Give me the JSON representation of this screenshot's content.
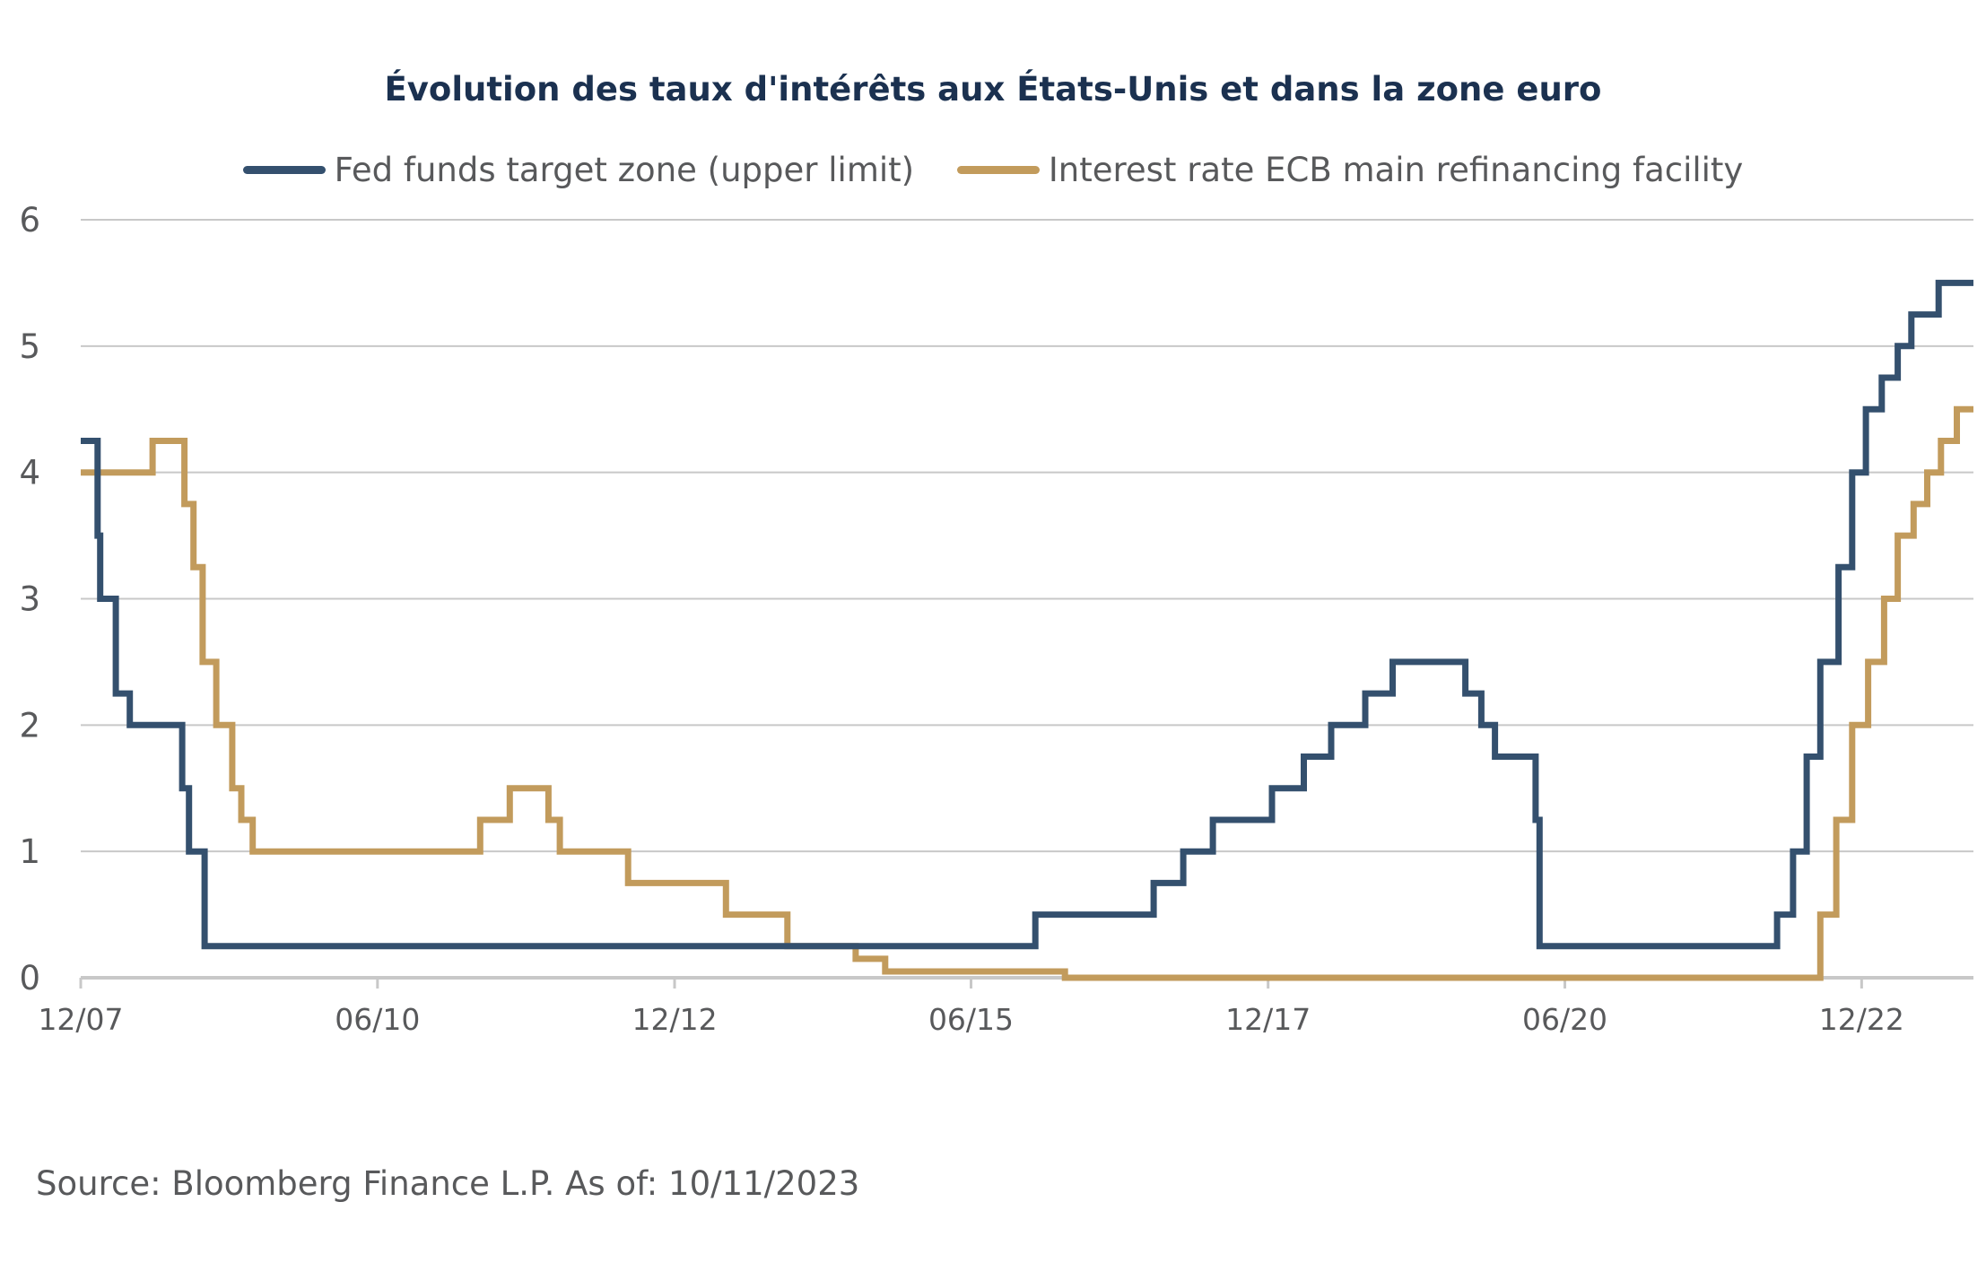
{
  "chart_data": {
    "type": "line",
    "title": "Évolution des taux d'intérêts aux États-Unis et dans la zone euro",
    "xlabel": "",
    "ylabel": "",
    "ylim": [
      0,
      6
    ],
    "yticks": [
      0,
      1,
      2,
      3,
      4,
      5,
      6
    ],
    "x_tick_labels": [
      "12/07",
      "06/10",
      "12/12",
      "06/15",
      "12/17",
      "06/20",
      "12/22"
    ],
    "x_tick_dates": [
      "2007-12",
      "2010-06",
      "2012-12",
      "2015-06",
      "2017-12",
      "2020-06",
      "2022-12"
    ],
    "x_range": [
      "2007-12-01",
      "2023-11-10"
    ],
    "grid": "horizontal",
    "legend_position": "top",
    "series": [
      {
        "name": "Fed funds target zone (upper limit)",
        "color": "#34506e",
        "step": true,
        "points": [
          [
            "2007-12-01",
            4.25
          ],
          [
            "2008-01-22",
            3.5
          ],
          [
            "2008-01-30",
            3.0
          ],
          [
            "2008-03-18",
            2.25
          ],
          [
            "2008-04-30",
            2.0
          ],
          [
            "2008-10-08",
            1.5
          ],
          [
            "2008-10-29",
            1.0
          ],
          [
            "2008-12-16",
            0.25
          ],
          [
            "2015-12-16",
            0.5
          ],
          [
            "2016-12-14",
            0.75
          ],
          [
            "2017-03-15",
            1.0
          ],
          [
            "2017-06-14",
            1.25
          ],
          [
            "2017-12-13",
            1.5
          ],
          [
            "2018-03-21",
            1.75
          ],
          [
            "2018-06-13",
            2.0
          ],
          [
            "2018-09-26",
            2.25
          ],
          [
            "2018-12-19",
            2.5
          ],
          [
            "2019-07-31",
            2.25
          ],
          [
            "2019-09-18",
            2.0
          ],
          [
            "2019-10-30",
            1.75
          ],
          [
            "2020-03-03",
            1.25
          ],
          [
            "2020-03-15",
            0.25
          ],
          [
            "2022-03-16",
            0.5
          ],
          [
            "2022-05-04",
            1.0
          ],
          [
            "2022-06-15",
            1.75
          ],
          [
            "2022-07-27",
            2.5
          ],
          [
            "2022-09-21",
            3.25
          ],
          [
            "2022-11-02",
            4.0
          ],
          [
            "2022-12-14",
            4.5
          ],
          [
            "2023-02-01",
            4.75
          ],
          [
            "2023-03-22",
            5.0
          ],
          [
            "2023-05-03",
            5.25
          ],
          [
            "2023-07-26",
            5.5
          ],
          [
            "2023-11-10",
            5.5
          ]
        ]
      },
      {
        "name": "Interest rate ECB main refinancing facility",
        "color": "#c29b5c",
        "step": true,
        "points": [
          [
            "2007-12-01",
            4.0
          ],
          [
            "2008-07-09",
            4.25
          ],
          [
            "2008-10-15",
            3.75
          ],
          [
            "2008-11-12",
            3.25
          ],
          [
            "2008-12-10",
            2.5
          ],
          [
            "2009-01-21",
            2.0
          ],
          [
            "2009-03-11",
            1.5
          ],
          [
            "2009-04-08",
            1.25
          ],
          [
            "2009-05-13",
            1.0
          ],
          [
            "2011-04-13",
            1.25
          ],
          [
            "2011-07-13",
            1.5
          ],
          [
            "2011-11-09",
            1.25
          ],
          [
            "2011-12-14",
            1.0
          ],
          [
            "2012-07-11",
            0.75
          ],
          [
            "2013-05-08",
            0.5
          ],
          [
            "2013-11-13",
            0.25
          ],
          [
            "2014-06-11",
            0.15
          ],
          [
            "2014-09-10",
            0.05
          ],
          [
            "2016-03-16",
            0.0
          ],
          [
            "2022-07-27",
            0.5
          ],
          [
            "2022-09-14",
            1.25
          ],
          [
            "2022-11-02",
            2.0
          ],
          [
            "2022-12-21",
            2.5
          ],
          [
            "2023-02-08",
            3.0
          ],
          [
            "2023-03-22",
            3.5
          ],
          [
            "2023-05-10",
            3.75
          ],
          [
            "2023-06-21",
            4.0
          ],
          [
            "2023-08-02",
            4.25
          ],
          [
            "2023-09-20",
            4.5
          ],
          [
            "2023-11-10",
            4.5
          ]
        ]
      }
    ]
  },
  "footer": {
    "source": "Source: Bloomberg Finance L.P. As of: 10/11/2023"
  }
}
